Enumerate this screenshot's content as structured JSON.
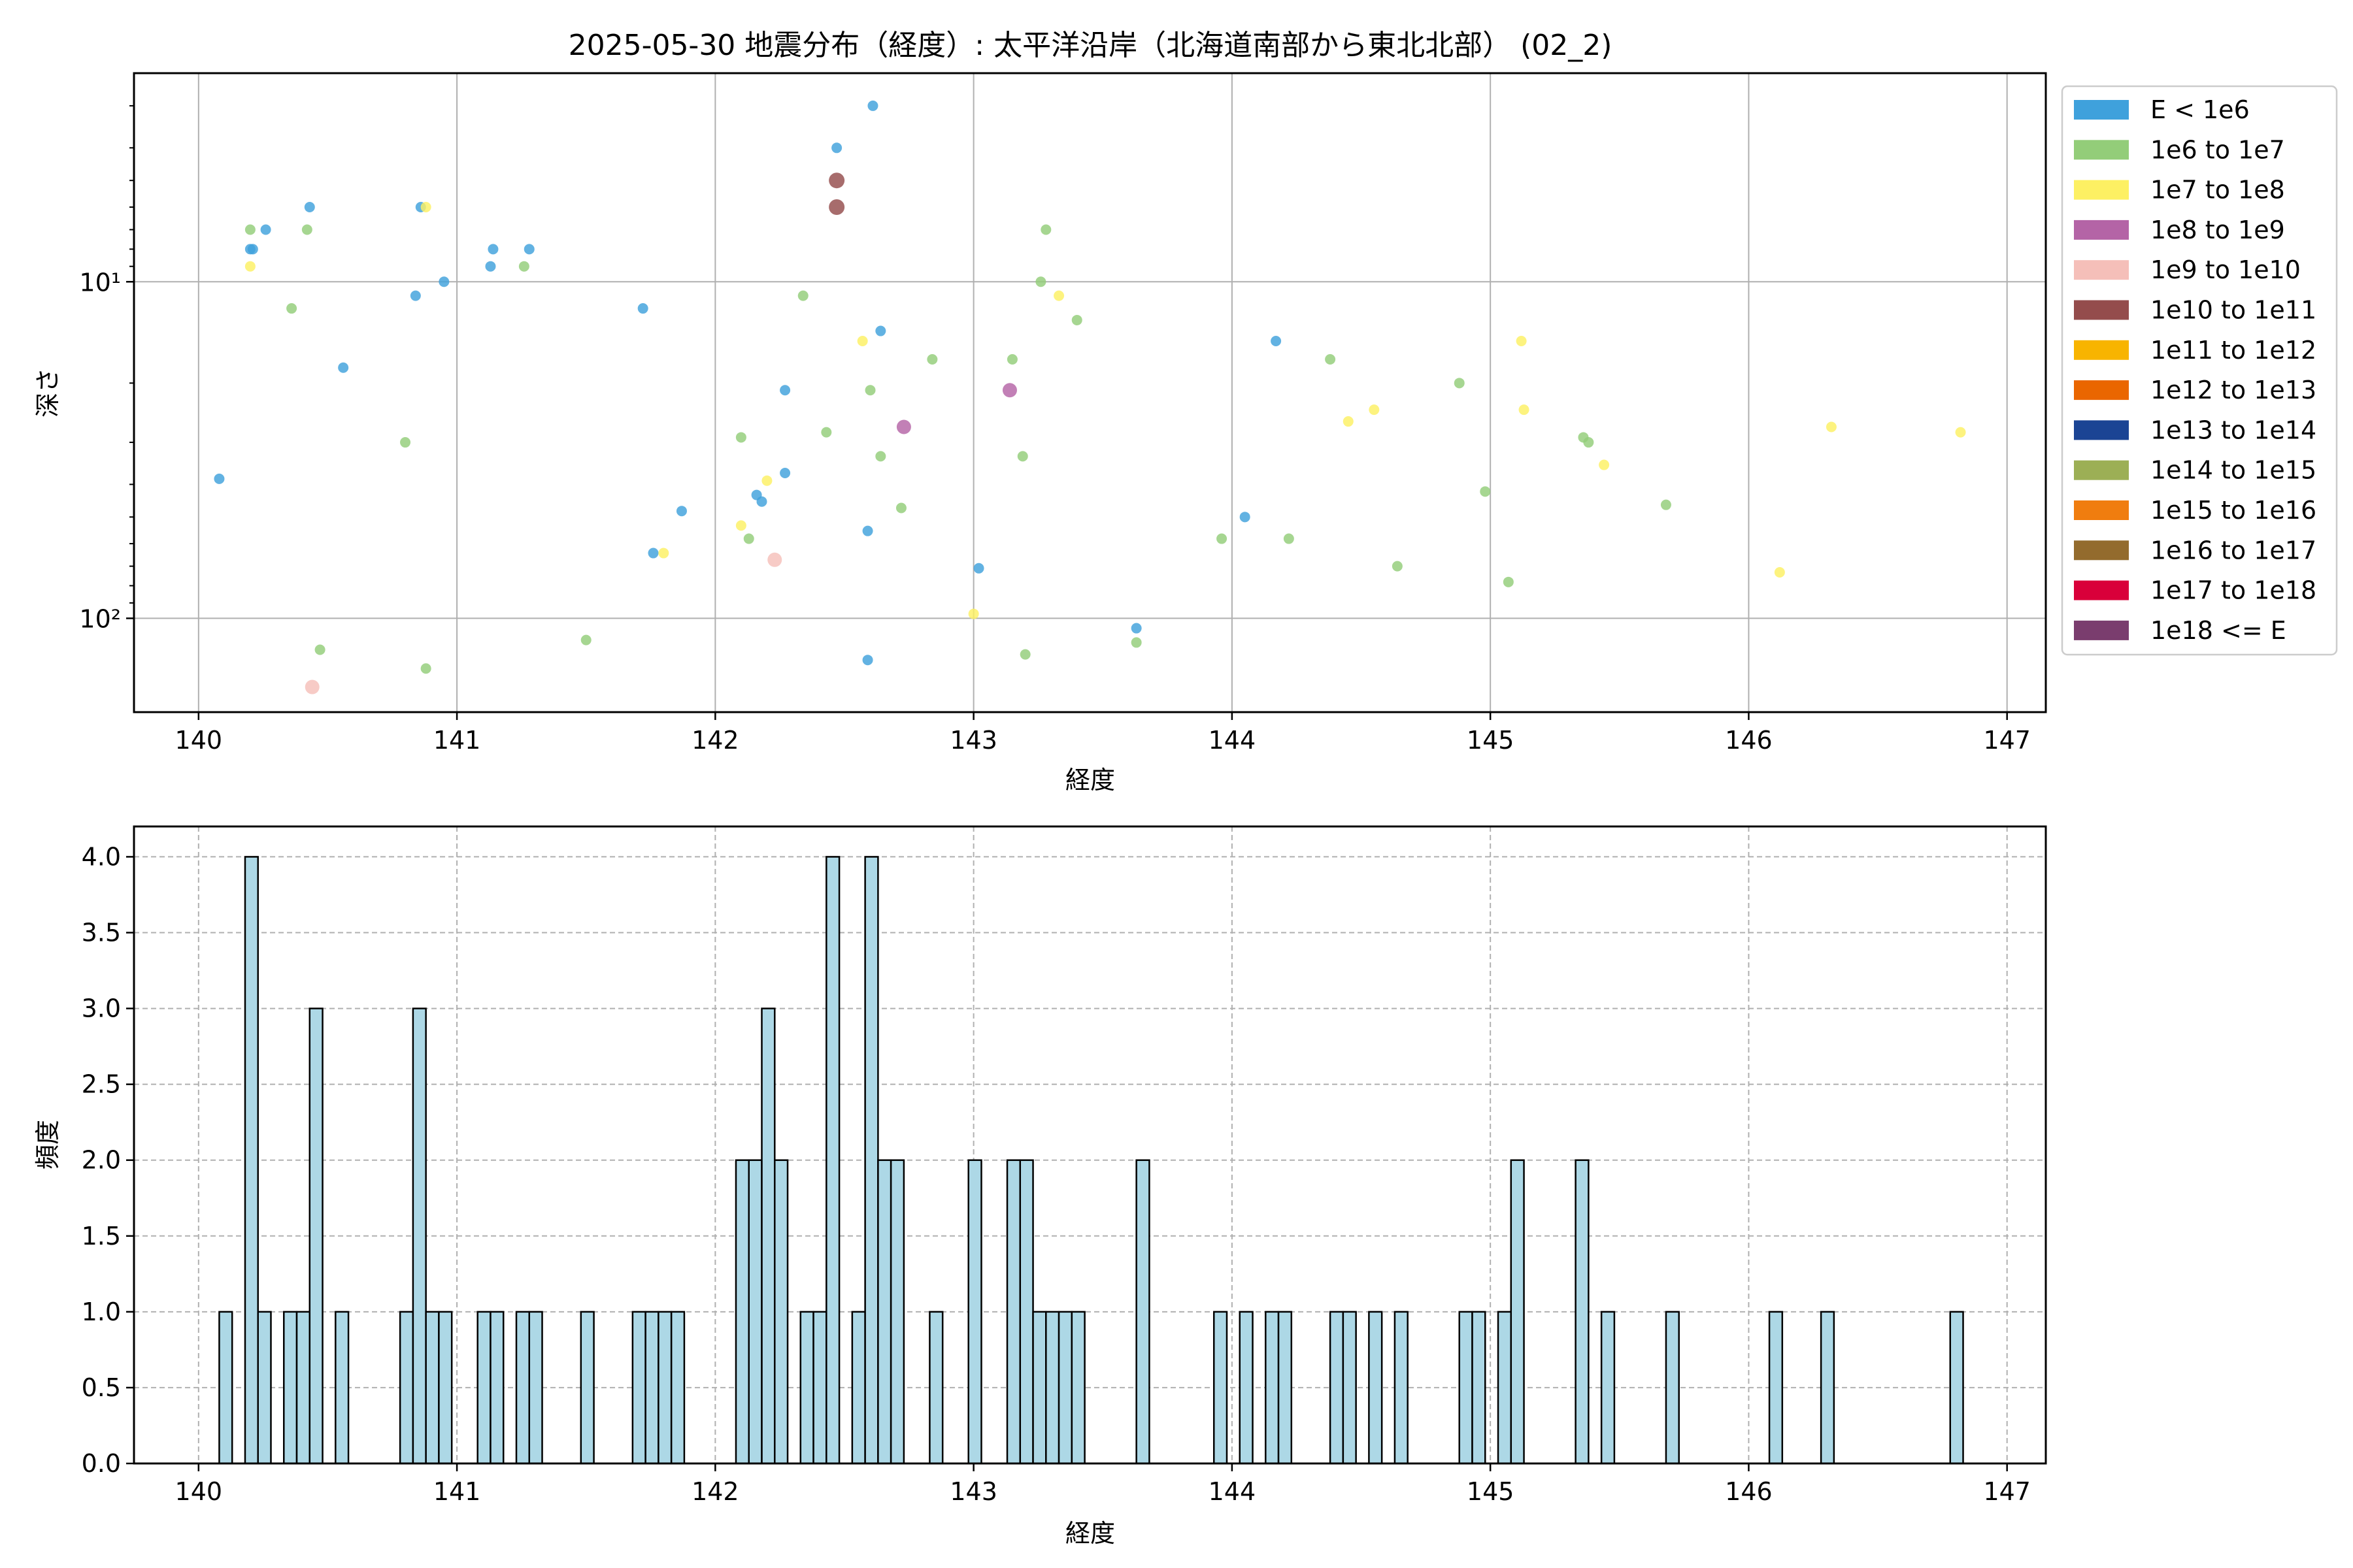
{
  "chart_data": [
    {
      "type": "scatter",
      "title": "2025-05-30 地震分布（経度）: 太平洋沿岸（北海道南部から東北北部） (02_2)",
      "xlabel": "経度",
      "ylabel": "深さ",
      "xlim": [
        139.75,
        147.15
      ],
      "ylim": [
        190,
        2.4
      ],
      "y_scale": "log",
      "y_inverted": true,
      "grid": true,
      "x_ticks": [
        140,
        141,
        142,
        143,
        144,
        145,
        146,
        147
      ],
      "x_tick_labels": [
        "140",
        "141",
        "142",
        "143",
        "144",
        "145",
        "146",
        "147"
      ],
      "y_ticks": [
        10,
        100
      ],
      "y_tick_labels": [
        "10¹",
        "10²"
      ],
      "legend_position": "outside-right",
      "legend": [
        {
          "label": "E < 1e6",
          "color": "#3fa1dc"
        },
        {
          "label": "1e6 to 1e7",
          "color": "#93cd79"
        },
        {
          "label": "1e7 to 1e8",
          "color": "#fdf063"
        },
        {
          "label": "1e8 to 1e9",
          "color": "#b464a6"
        },
        {
          "label": "1e9 to 1e10",
          "color": "#f5bfb9"
        },
        {
          "label": "1e10 to 1e11",
          "color": "#944c4c"
        },
        {
          "label": "1e11 to 1e12",
          "color": "#f8b400"
        },
        {
          "label": "1e12 to 1e13",
          "color": "#ea6600"
        },
        {
          "label": "1e13 to 1e14",
          "color": "#1b4494"
        },
        {
          "label": "1e14 to 1e15",
          "color": "#9caf55"
        },
        {
          "label": "1e15 to 1e16",
          "color": "#f07d0f"
        },
        {
          "label": "1e16 to 1e17",
          "color": "#936b2d"
        },
        {
          "label": "1e17 to 1e18",
          "color": "#d9003a"
        },
        {
          "label": "1e18 <= E",
          "color": "#7a3d6e"
        }
      ],
      "series": [
        {
          "name": "E < 1e6",
          "points": [
            [
              140.08,
              38.5
            ],
            [
              140.2,
              8.0
            ],
            [
              140.21,
              8.0
            ],
            [
              140.26,
              7.0
            ],
            [
              140.43,
              6.0
            ],
            [
              140.56,
              18.0
            ],
            [
              140.84,
              11.0
            ],
            [
              140.86,
              6.0
            ],
            [
              140.95,
              10.0
            ],
            [
              141.13,
              9.0
            ],
            [
              141.14,
              8.0
            ],
            [
              141.28,
              8.0
            ],
            [
              141.72,
              12.0
            ],
            [
              141.76,
              64.0
            ],
            [
              141.87,
              48.0
            ],
            [
              142.16,
              43.0
            ],
            [
              142.18,
              45.0
            ],
            [
              142.27,
              21.0
            ],
            [
              142.27,
              37.0
            ],
            [
              142.47,
              4.0
            ],
            [
              142.59,
              55.0
            ],
            [
              142.59,
              133.0
            ],
            [
              142.61,
              3.0
            ],
            [
              142.64,
              14.0
            ],
            [
              143.02,
              71.0
            ],
            [
              143.63,
              107.0
            ],
            [
              144.05,
              50.0
            ],
            [
              144.17,
              15.0
            ]
          ]
        },
        {
          "name": "1e6 to 1e7",
          "points": [
            [
              140.2,
              7.0
            ],
            [
              140.36,
              12.0
            ],
            [
              140.42,
              7.0
            ],
            [
              140.47,
              124.0
            ],
            [
              140.8,
              30.0
            ],
            [
              140.88,
              141.0
            ],
            [
              141.26,
              9.0
            ],
            [
              141.5,
              116.0
            ],
            [
              142.1,
              29.0
            ],
            [
              142.13,
              58.0
            ],
            [
              142.34,
              11.0
            ],
            [
              142.43,
              28.0
            ],
            [
              142.6,
              21.0
            ],
            [
              142.64,
              33.0
            ],
            [
              142.72,
              47.0
            ],
            [
              142.84,
              17.0
            ],
            [
              143.15,
              17.0
            ],
            [
              143.19,
              33.0
            ],
            [
              143.2,
              128.0
            ],
            [
              143.26,
              10.0
            ],
            [
              143.28,
              7.0
            ],
            [
              143.4,
              13.0
            ],
            [
              143.63,
              118.0
            ],
            [
              143.96,
              58.0
            ],
            [
              144.22,
              58.0
            ],
            [
              144.38,
              17.0
            ],
            [
              144.64,
              70.0
            ],
            [
              144.88,
              20.0
            ],
            [
              144.98,
              42.0
            ],
            [
              145.07,
              78.0
            ],
            [
              145.36,
              29.0
            ],
            [
              145.38,
              30.0
            ],
            [
              145.68,
              46.0
            ]
          ]
        },
        {
          "name": "1e7 to 1e8",
          "points": [
            [
              140.2,
              9.0
            ],
            [
              140.88,
              6.0
            ],
            [
              141.8,
              64.0
            ],
            [
              142.1,
              53.0
            ],
            [
              142.2,
              39.0
            ],
            [
              142.57,
              15.0
            ],
            [
              143.0,
              97.0
            ],
            [
              143.33,
              11.0
            ],
            [
              144.45,
              26.0
            ],
            [
              144.55,
              24.0
            ],
            [
              145.12,
              15.0
            ],
            [
              145.13,
              24.0
            ],
            [
              145.44,
              35.0
            ],
            [
              146.12,
              73.0
            ],
            [
              146.32,
              27.0
            ],
            [
              146.82,
              28.0
            ]
          ]
        },
        {
          "name": "1e8 to 1e9",
          "points": [
            [
              142.73,
              27.0
            ],
            [
              143.14,
              21.0
            ]
          ]
        },
        {
          "name": "1e9 to 1e10",
          "points": [
            [
              140.44,
              160.0
            ],
            [
              142.23,
              67.0
            ]
          ]
        },
        {
          "name": "1e10 to 1e11",
          "points": [
            [
              142.47,
              5.0
            ],
            [
              142.47,
              6.0
            ]
          ]
        }
      ]
    },
    {
      "type": "bar",
      "xlabel": "経度",
      "ylabel": "頻度",
      "xlim": [
        139.75,
        147.15
      ],
      "ylim": [
        0,
        4.2
      ],
      "grid": true,
      "grid_style": "dashed",
      "bin_width": 0.05,
      "bar_color": "#add8e6",
      "edge_color": "#000000",
      "x_ticks": [
        140,
        141,
        142,
        143,
        144,
        145,
        146,
        147
      ],
      "x_tick_labels": [
        "140",
        "141",
        "142",
        "143",
        "144",
        "145",
        "146",
        "147"
      ],
      "y_ticks": [
        0,
        0.5,
        1,
        1.5,
        2,
        2.5,
        3,
        3.5,
        4
      ],
      "y_tick_labels": [
        "0.0",
        "0.5",
        "1.0",
        "1.5",
        "2.0",
        "2.5",
        "3.0",
        "3.5",
        "4.0"
      ],
      "bins": [
        [
          140.08,
          1
        ],
        [
          140.18,
          4
        ],
        [
          140.23,
          1
        ],
        [
          140.33,
          1
        ],
        [
          140.38,
          1
        ],
        [
          140.43,
          3
        ],
        [
          140.53,
          1
        ],
        [
          140.78,
          1
        ],
        [
          140.83,
          3
        ],
        [
          140.88,
          1
        ],
        [
          140.93,
          1
        ],
        [
          141.08,
          1
        ],
        [
          141.13,
          1
        ],
        [
          141.23,
          1
        ],
        [
          141.28,
          1
        ],
        [
          141.48,
          1
        ],
        [
          141.68,
          1
        ],
        [
          141.73,
          1
        ],
        [
          141.78,
          1
        ],
        [
          141.83,
          1
        ],
        [
          142.08,
          2
        ],
        [
          142.13,
          2
        ],
        [
          142.18,
          3
        ],
        [
          142.23,
          2
        ],
        [
          142.33,
          1
        ],
        [
          142.38,
          1
        ],
        [
          142.43,
          4
        ],
        [
          142.53,
          1
        ],
        [
          142.58,
          4
        ],
        [
          142.63,
          2
        ],
        [
          142.68,
          2
        ],
        [
          142.83,
          1
        ],
        [
          142.98,
          2
        ],
        [
          143.13,
          2
        ],
        [
          143.18,
          2
        ],
        [
          143.23,
          1
        ],
        [
          143.28,
          1
        ],
        [
          143.33,
          1
        ],
        [
          143.38,
          1
        ],
        [
          143.63,
          2
        ],
        [
          143.93,
          1
        ],
        [
          144.03,
          1
        ],
        [
          144.13,
          1
        ],
        [
          144.18,
          1
        ],
        [
          144.38,
          1
        ],
        [
          144.43,
          1
        ],
        [
          144.53,
          1
        ],
        [
          144.63,
          1
        ],
        [
          144.88,
          1
        ],
        [
          144.93,
          1
        ],
        [
          145.03,
          1
        ],
        [
          145.08,
          2
        ],
        [
          145.33,
          2
        ],
        [
          145.43,
          1
        ],
        [
          145.68,
          1
        ],
        [
          146.08,
          1
        ],
        [
          146.28,
          1
        ],
        [
          146.78,
          1
        ]
      ]
    }
  ]
}
